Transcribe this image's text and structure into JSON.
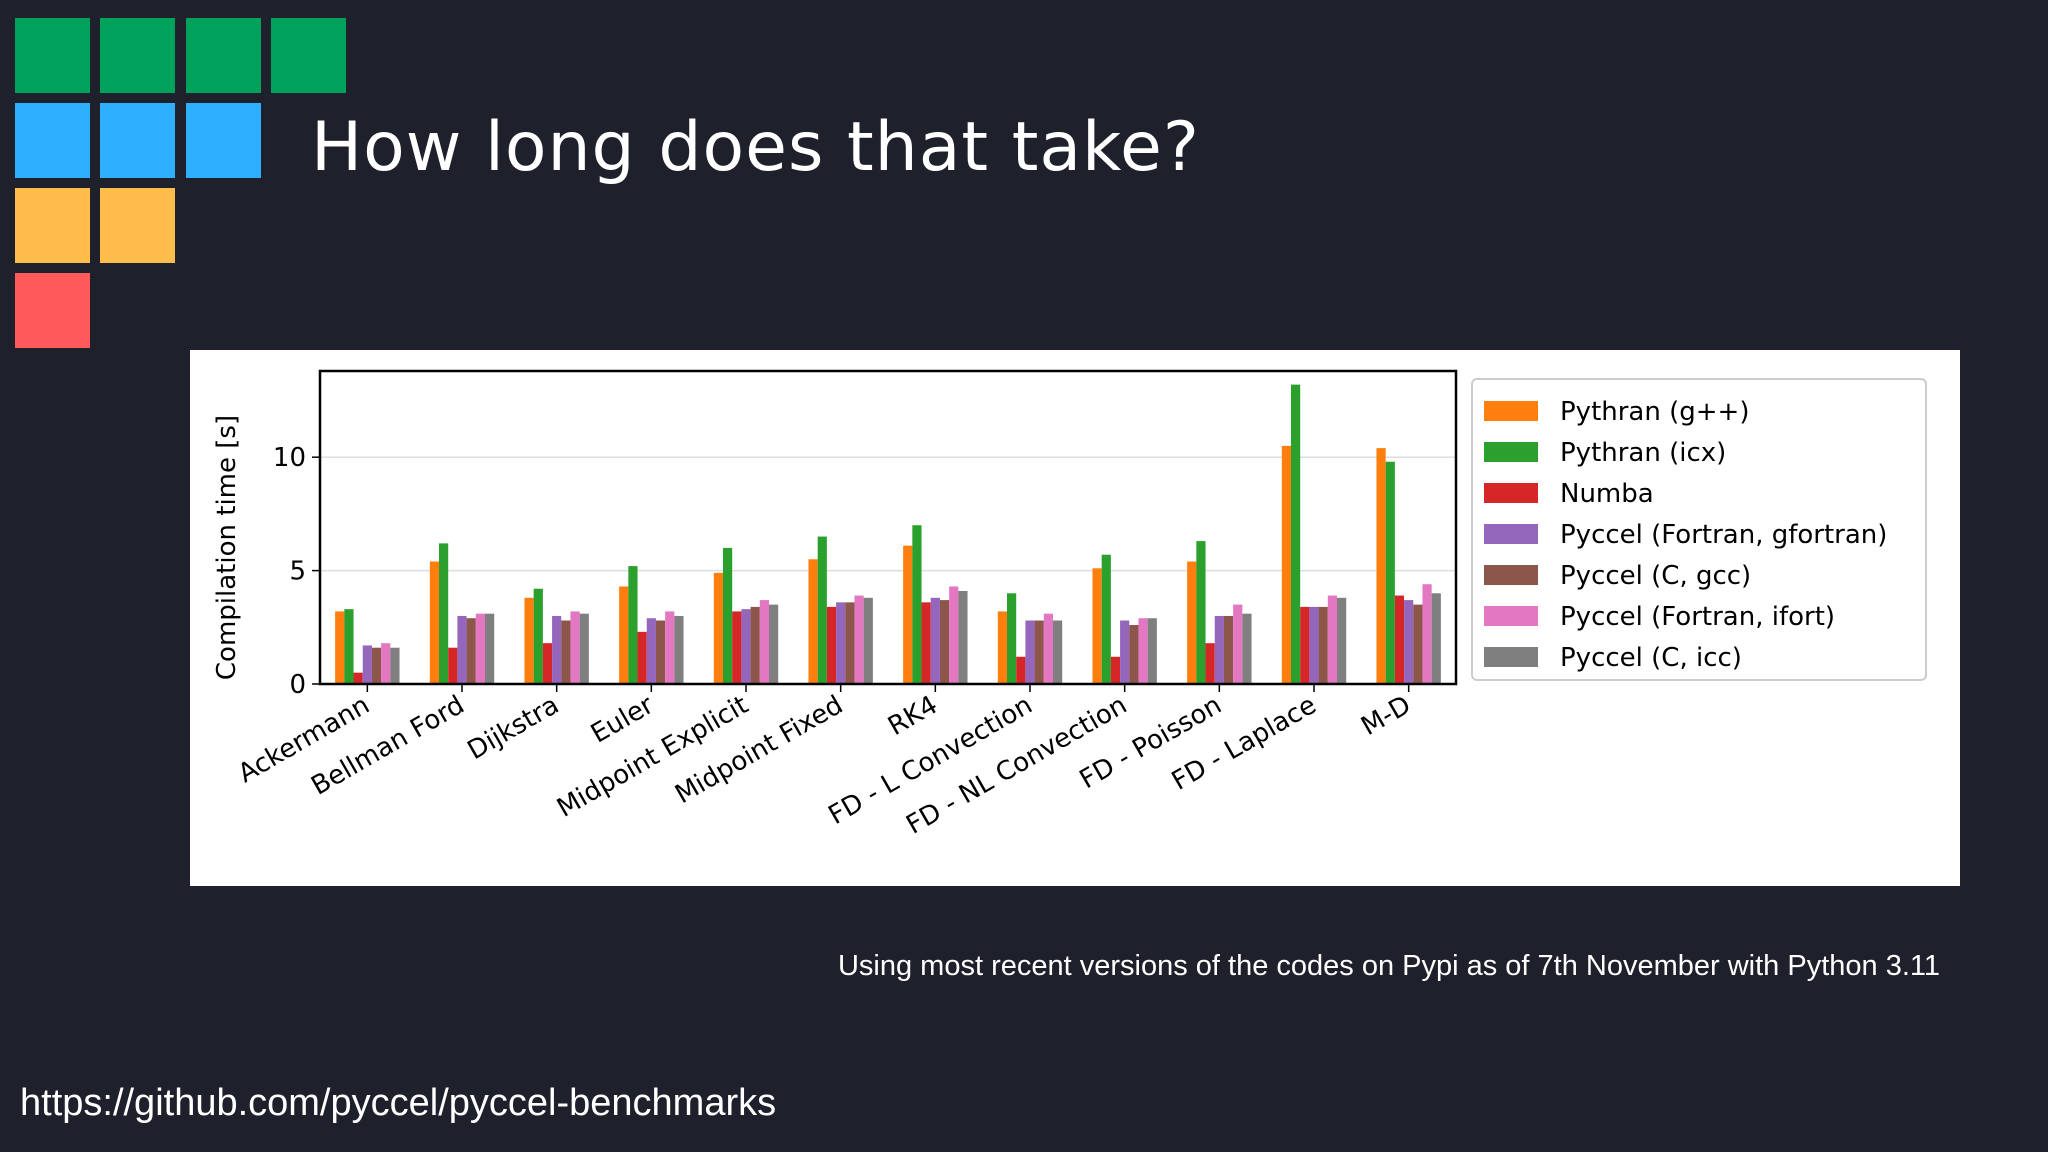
{
  "slide": {
    "title": "How long does that take?",
    "note": "Using most recent versions of the codes on Pypi as of 7th November with Python 3.11",
    "link": "https://github.com/pyccel/pyccel-benchmarks"
  },
  "logo_colors": [
    "#00a15a",
    "#2eafff",
    "#ffbe4c",
    "#ff5a5a"
  ],
  "chart_data": {
    "type": "bar",
    "title": "",
    "xlabel": "",
    "ylabel": "Compilation time [s]",
    "ylim": [
      0,
      13.8
    ],
    "yticks": [
      0,
      5,
      10
    ],
    "grid": "horizontal",
    "legend_position": "right",
    "categories": [
      "Ackermann",
      "Bellman Ford",
      "Dijkstra",
      "Euler",
      "Midpoint Explicit",
      "Midpoint Fixed",
      "RK4",
      "FD - L Convection",
      "FD - NL Convection",
      "FD - Poisson",
      "FD - Laplace",
      "M-D"
    ],
    "series": [
      {
        "name": "Pythran (g++)",
        "color": "#ff7f0e",
        "values": [
          3.2,
          5.4,
          3.8,
          4.3,
          4.9,
          5.5,
          6.1,
          3.2,
          5.1,
          5.4,
          10.5,
          10.4
        ]
      },
      {
        "name": "Pythran (icx)",
        "color": "#2ca02c",
        "values": [
          3.3,
          6.2,
          4.2,
          5.2,
          6.0,
          6.5,
          7.0,
          4.0,
          5.7,
          6.3,
          13.2,
          9.8
        ]
      },
      {
        "name": "Numba",
        "color": "#d62728",
        "values": [
          0.5,
          1.6,
          1.8,
          2.3,
          3.2,
          3.4,
          3.6,
          1.2,
          1.2,
          1.8,
          3.4,
          3.9
        ]
      },
      {
        "name": "Pyccel (Fortran, gfortran)",
        "color": "#9467bd",
        "values": [
          1.7,
          3.0,
          3.0,
          2.9,
          3.3,
          3.6,
          3.8,
          2.8,
          2.8,
          3.0,
          3.4,
          3.7
        ]
      },
      {
        "name": "Pyccel (C, gcc)",
        "color": "#8c564b",
        "values": [
          1.6,
          2.9,
          2.8,
          2.8,
          3.4,
          3.6,
          3.7,
          2.8,
          2.6,
          3.0,
          3.4,
          3.5
        ]
      },
      {
        "name": "Pyccel (Fortran, ifort)",
        "color": "#e377c2",
        "values": [
          1.8,
          3.1,
          3.2,
          3.2,
          3.7,
          3.9,
          4.3,
          3.1,
          2.9,
          3.5,
          3.9,
          4.4
        ]
      },
      {
        "name": "Pyccel (C, icc)",
        "color": "#7f7f7f",
        "values": [
          1.6,
          3.1,
          3.1,
          3.0,
          3.5,
          3.8,
          4.1,
          2.8,
          2.9,
          3.1,
          3.8,
          4.0
        ]
      }
    ]
  }
}
